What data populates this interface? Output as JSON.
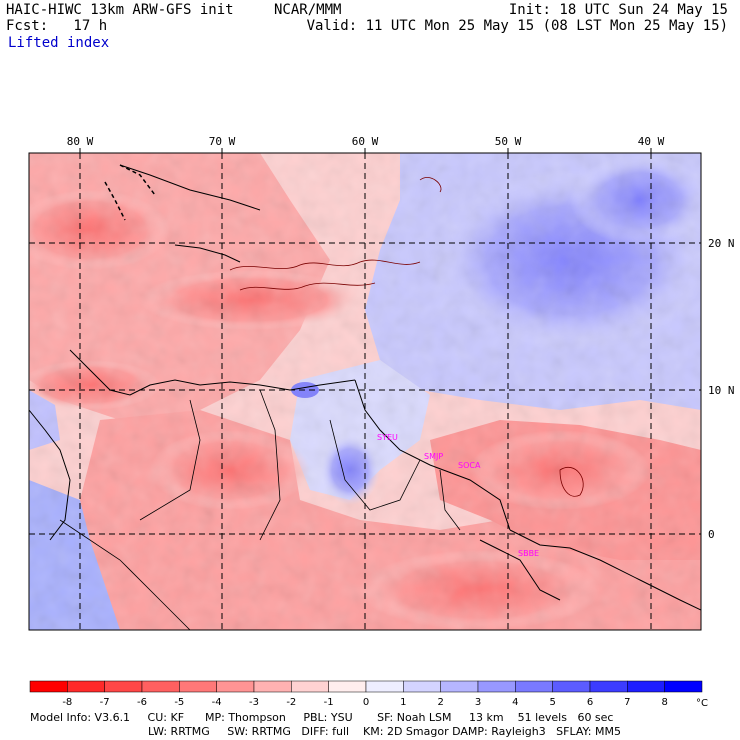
{
  "header": {
    "model_title": "HAIC-HIWC 13km ARW-GFS init",
    "center": "NCAR/MMM",
    "forecast": "Fcst:   17 h",
    "init": "Init: 18 UTC Sun 24 May 15",
    "valid": "Valid: 11 UTC Mon 25 May 15 (08 LST Mon 25 May 15)",
    "field_name": "Lifted index"
  },
  "map": {
    "lon_labels": [
      "80 W",
      "70 W",
      "60 W",
      "50 W",
      "40 W"
    ],
    "lat_labels": [
      "20 N",
      "10 N",
      "0"
    ],
    "stations": [
      "SYEU",
      "SMJP",
      "SOCA",
      "SBBE"
    ],
    "colors": {
      "station_label": "#ff00ff",
      "coast": "#000000",
      "contour": "#8b0000"
    }
  },
  "colorbar": {
    "tick_labels": [
      "-8",
      "-7",
      "-6",
      "-5",
      "-4",
      "-3",
      "-2",
      "-1",
      "0",
      "1",
      "2",
      "3",
      "4",
      "5",
      "6",
      "7",
      "8"
    ],
    "unit": "°C",
    "colors": [
      "#ff0000",
      "#ff2a2a",
      "#ff4747",
      "#ff6060",
      "#ff7878",
      "#ff9494",
      "#ffb2b2",
      "#ffd2d2",
      "#ffeeee",
      "#eeeeff",
      "#d4d4ff",
      "#b6b6ff",
      "#9898ff",
      "#7a7aff",
      "#5c5cff",
      "#3c3cff",
      "#1e1eff",
      "#0000ff"
    ]
  },
  "footer": {
    "line1": "Model Info: V3.6.1     CU: KF      MP: Thompson     PBL: YSU       SF: Noah LSM     13 km    51 levels   60 sec",
    "line2": "LW: RRTMG     SW: RRTMG   DIFF: full    KM: 2D Smagor DAMP: Rayleigh3   SFLAY: MM5"
  }
}
